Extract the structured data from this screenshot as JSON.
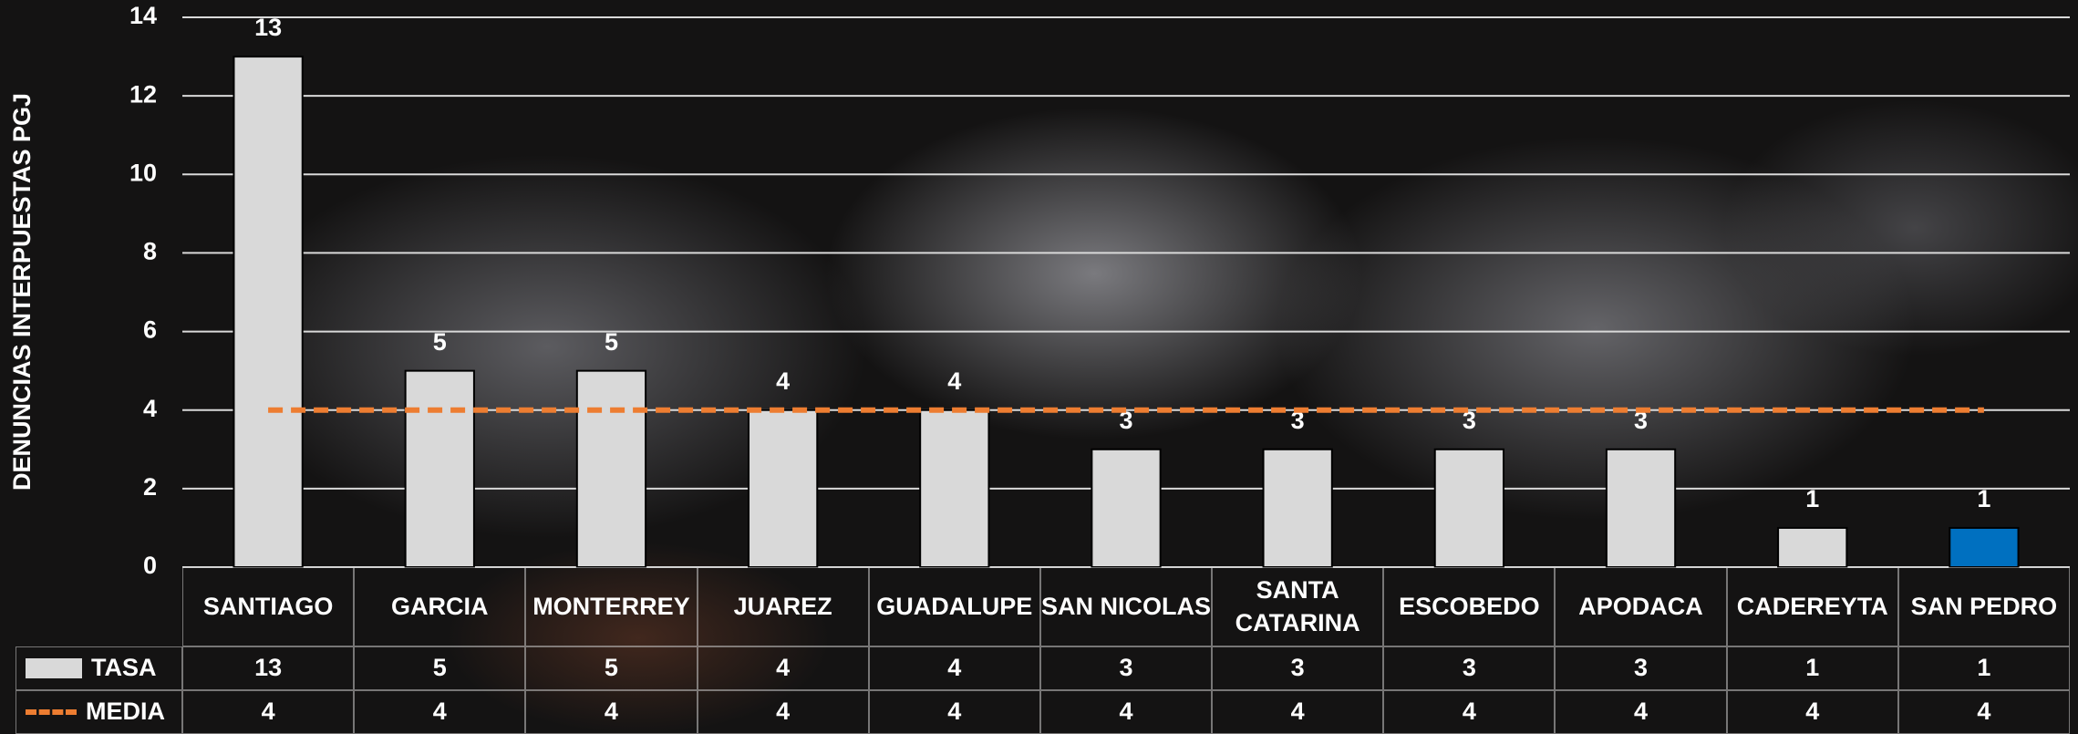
{
  "chart_data": {
    "type": "bar",
    "y_label": "DENUNCIAS INTERPUESTAS PGJ",
    "categories": [
      "SANTIAGO",
      "GARCIA",
      "MONTERREY",
      "JUAREZ",
      "GUADALUPE",
      "SAN NICOLAS",
      "SANTA CATARINA",
      "ESCOBEDO",
      "APODACA",
      "CADEREYTA",
      "SAN PEDRO"
    ],
    "series": [
      {
        "name": "TASA",
        "type": "bar",
        "color": "#d9d9d9",
        "colors": [
          "#d9d9d9",
          "#d9d9d9",
          "#d9d9d9",
          "#d9d9d9",
          "#d9d9d9",
          "#d9d9d9",
          "#d9d9d9",
          "#d9d9d9",
          "#d9d9d9",
          "#d9d9d9",
          "#0070c0"
        ],
        "values": [
          13,
          5,
          5,
          4,
          4,
          3,
          3,
          3,
          3,
          1,
          1
        ]
      },
      {
        "name": "MEDIA",
        "type": "line",
        "color": "#ed7d31",
        "values": [
          4,
          4,
          4,
          4,
          4,
          4,
          4,
          4,
          4,
          4,
          4
        ]
      }
    ],
    "ylim": [
      0,
      14
    ],
    "yticks": [
      0,
      2,
      4,
      6,
      8,
      10,
      12,
      14
    ],
    "grid": true,
    "data_table": true
  }
}
